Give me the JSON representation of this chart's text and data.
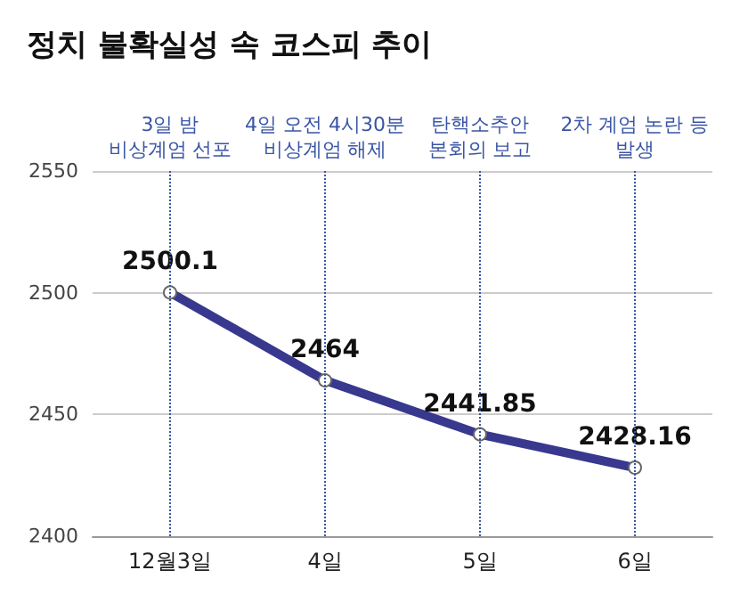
{
  "chart_data": {
    "type": "line",
    "title": "정치 불확실성 속 코스피 추이",
    "categories": [
      "12월3일",
      "4일",
      "5일",
      "6일"
    ],
    "series": [
      {
        "color": "#38388f",
        "values": [
          2500.1,
          2464,
          2441.85,
          2428.16
        ]
      }
    ],
    "ylim": [
      2400,
      2550
    ],
    "yticks": [
      2400,
      2450,
      2500,
      2550
    ],
    "grid": "y",
    "marker": "circle",
    "line_style": "solid",
    "data_labels": true,
    "ref_lines": [
      {
        "axis": "x",
        "value": "12월3일",
        "label": "3일 밤\n비상계엄 선포",
        "color": "#3a55a5",
        "line_style": "dotted"
      },
      {
        "axis": "x",
        "value": "4일",
        "label": "4일 오전 4시30분\n비상계엄 해제",
        "color": "#3a55a5",
        "line_style": "dotted"
      },
      {
        "axis": "x",
        "value": "5일",
        "label": "탄핵소추안\n본회의 보고",
        "color": "#3a55a5",
        "line_style": "dotted"
      },
      {
        "axis": "x",
        "value": "6일",
        "label": "2차 계엄 논란 등\n발생",
        "color": "#3a55a5",
        "line_style": "dotted"
      }
    ]
  }
}
